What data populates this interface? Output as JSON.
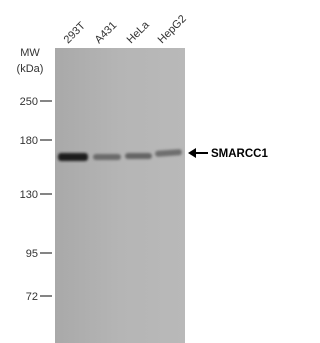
{
  "lanes": [
    "293T",
    "A431",
    "HeLa",
    "HepG2"
  ],
  "mw_label": "MW",
  "mw_unit": "(kDa)",
  "markers": [
    "250",
    "180",
    "130",
    "95",
    "72"
  ],
  "target": "SMARCC1"
}
